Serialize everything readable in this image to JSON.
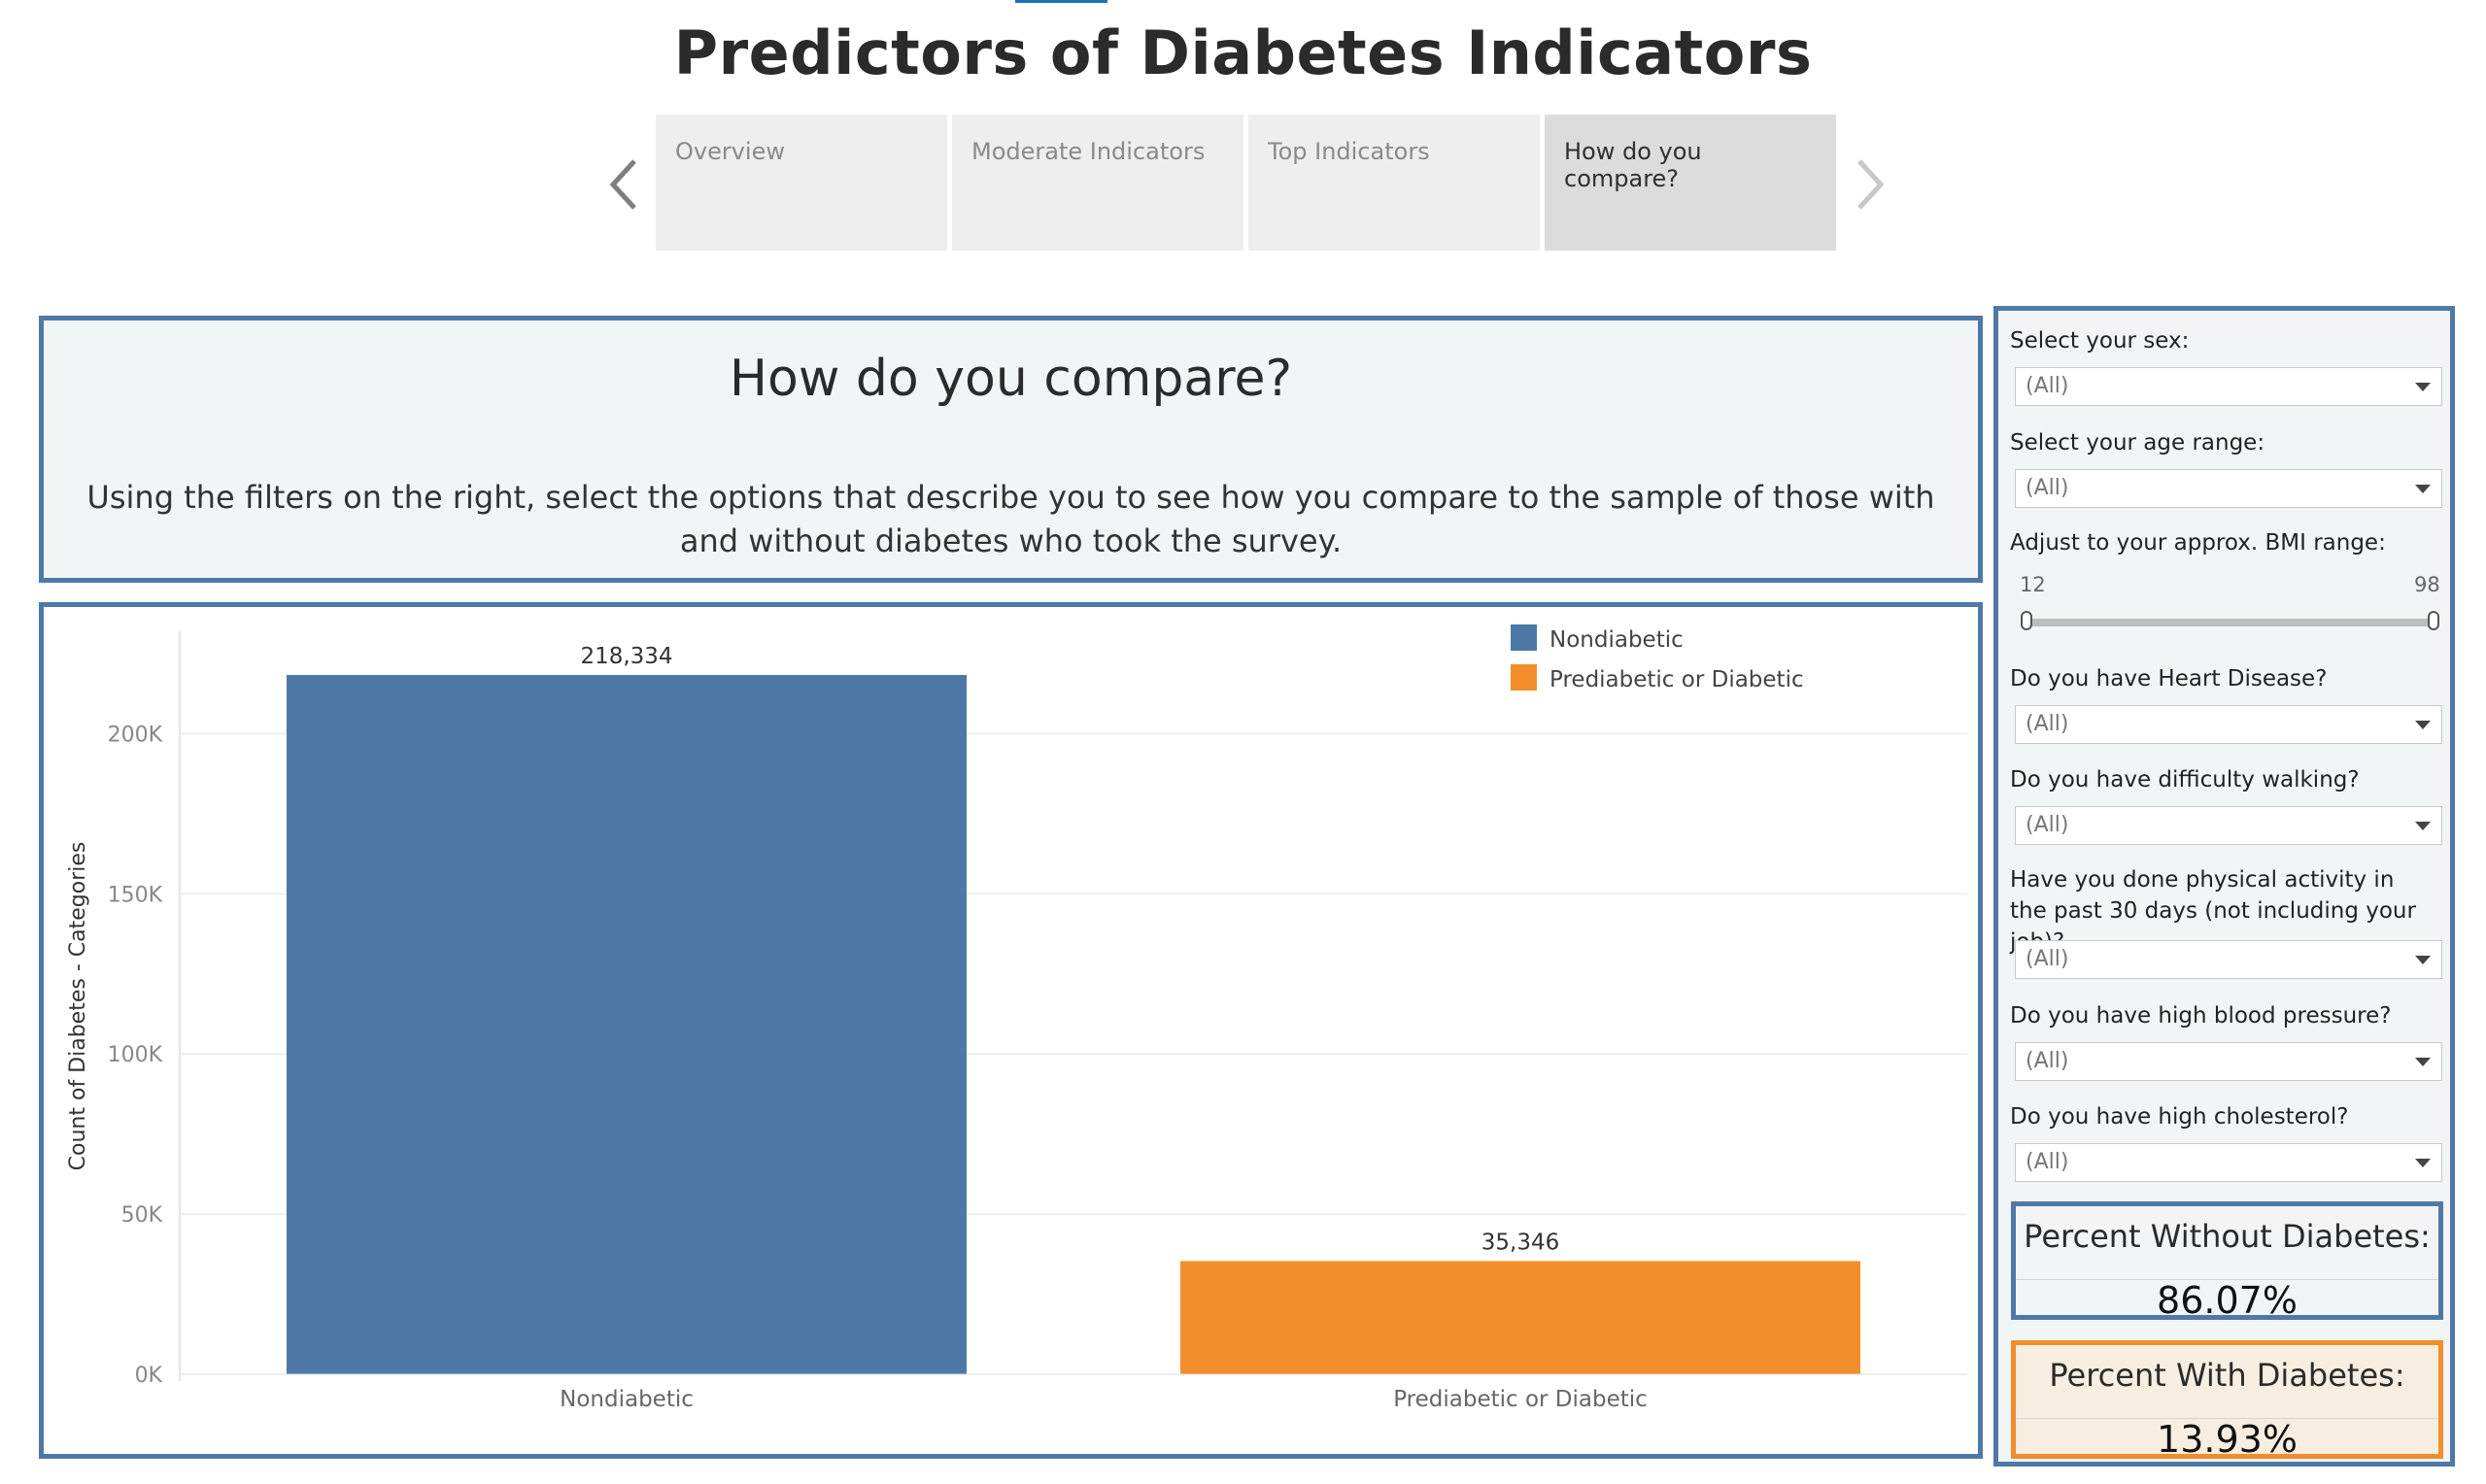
{
  "story": {
    "title": "Predictors of Diabetes Indicators",
    "tabs": [
      {
        "label": "Overview"
      },
      {
        "label": "Moderate Indicators"
      },
      {
        "label": "Top Indicators"
      },
      {
        "label": "How do you compare?"
      }
    ],
    "active_tab": 3
  },
  "intro": {
    "heading": "How do you compare?",
    "text": "Using the filters on the right, select the options that describe you to see how you compare to the sample of those with and without diabetes who took the survey."
  },
  "filters": {
    "sex": {
      "label": "Select your sex:",
      "value": "(All)"
    },
    "age": {
      "label": "Select your age range:",
      "value": "(All)"
    },
    "bmi": {
      "label": "Adjust to your approx. BMI range:",
      "min": "12",
      "max": "98"
    },
    "heart": {
      "label": "Do you have Heart Disease?",
      "value": "(All)"
    },
    "walking": {
      "label": "Do you have difficulty walking?",
      "value": "(All)"
    },
    "activity": {
      "label": "Have you done physical activity in the past 30 days (not including your job)?",
      "value": "(All)"
    },
    "bp": {
      "label": "Do you have high blood pressure?",
      "value": "(All)"
    },
    "chol": {
      "label": "Do you have high cholesterol?",
      "value": "(All)"
    }
  },
  "kpis": {
    "without": {
      "label": "Percent Without Diabetes:",
      "value": "86.07%"
    },
    "with": {
      "label": "Percent With Diabetes:",
      "value": "13.93%"
    }
  },
  "chart_data": {
    "type": "bar",
    "categories": [
      "Nondiabetic",
      "Prediabetic or Diabetic"
    ],
    "values": [
      218334,
      35346
    ],
    "value_labels": [
      "218,334",
      "35,346"
    ],
    "colors": [
      "#4e79a7",
      "#f28e2b"
    ],
    "ylabel": "Count of Diabetes - Categories",
    "ylim": [
      0,
      230000
    ],
    "yticks": [
      0,
      50000,
      100000,
      150000,
      200000
    ],
    "ytick_labels": [
      "0K",
      "50K",
      "100K",
      "150K",
      "200K"
    ],
    "legend": [
      {
        "name": "Nondiabetic",
        "color": "#4e79a7"
      },
      {
        "name": "Prediabetic or Diabetic",
        "color": "#f28e2b"
      }
    ],
    "legend_position": "top-right",
    "grid": true
  }
}
